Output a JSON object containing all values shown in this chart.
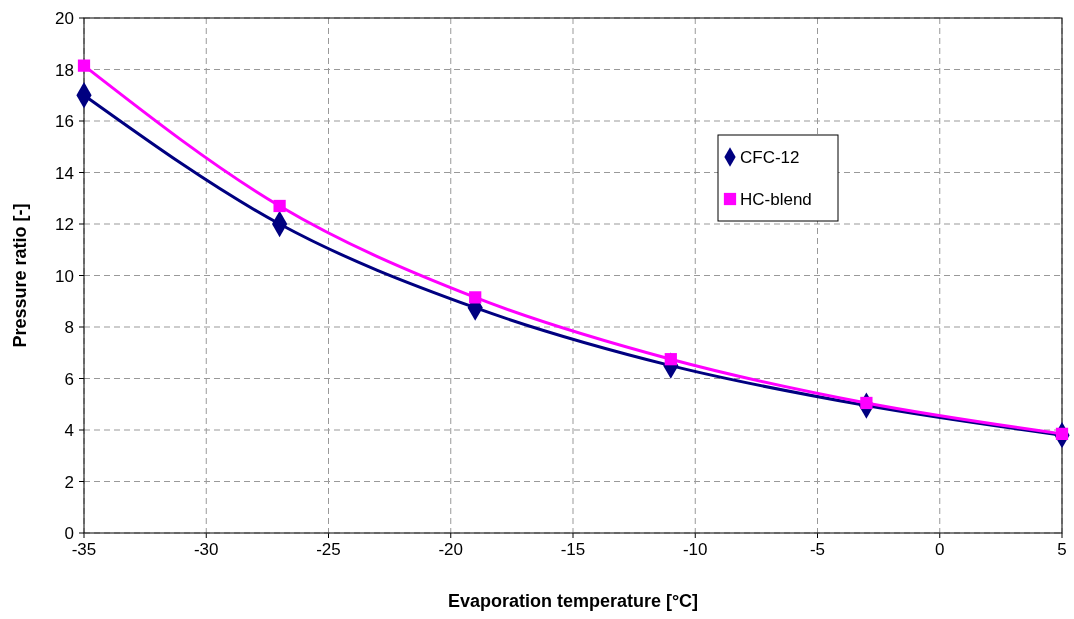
{
  "chart_data": {
    "type": "line",
    "xlabel": "Evaporation temperature [°C]",
    "ylabel": "Pressure ratio [-]",
    "x": [
      -35,
      -27,
      -19,
      -11,
      -3,
      5
    ],
    "series": [
      {
        "name": "CFC-12",
        "color": "#000080",
        "marker": "diamond",
        "values": [
          17.0,
          12.0,
          8.75,
          6.5,
          4.95,
          3.8
        ]
      },
      {
        "name": "HC-blend",
        "color": "#ff00ff",
        "marker": "square",
        "values": [
          18.15,
          12.7,
          9.15,
          6.75,
          5.05,
          3.85
        ]
      }
    ],
    "xlim": [
      -35,
      5
    ],
    "xticks": [
      -35,
      -30,
      -25,
      -20,
      -15,
      -10,
      -5,
      0,
      5
    ],
    "ylim": [
      0,
      20
    ],
    "yticks": [
      0,
      2,
      4,
      6,
      8,
      10,
      12,
      14,
      16,
      18,
      20
    ],
    "grid": true,
    "legend": "right",
    "line_style": "solid"
  }
}
